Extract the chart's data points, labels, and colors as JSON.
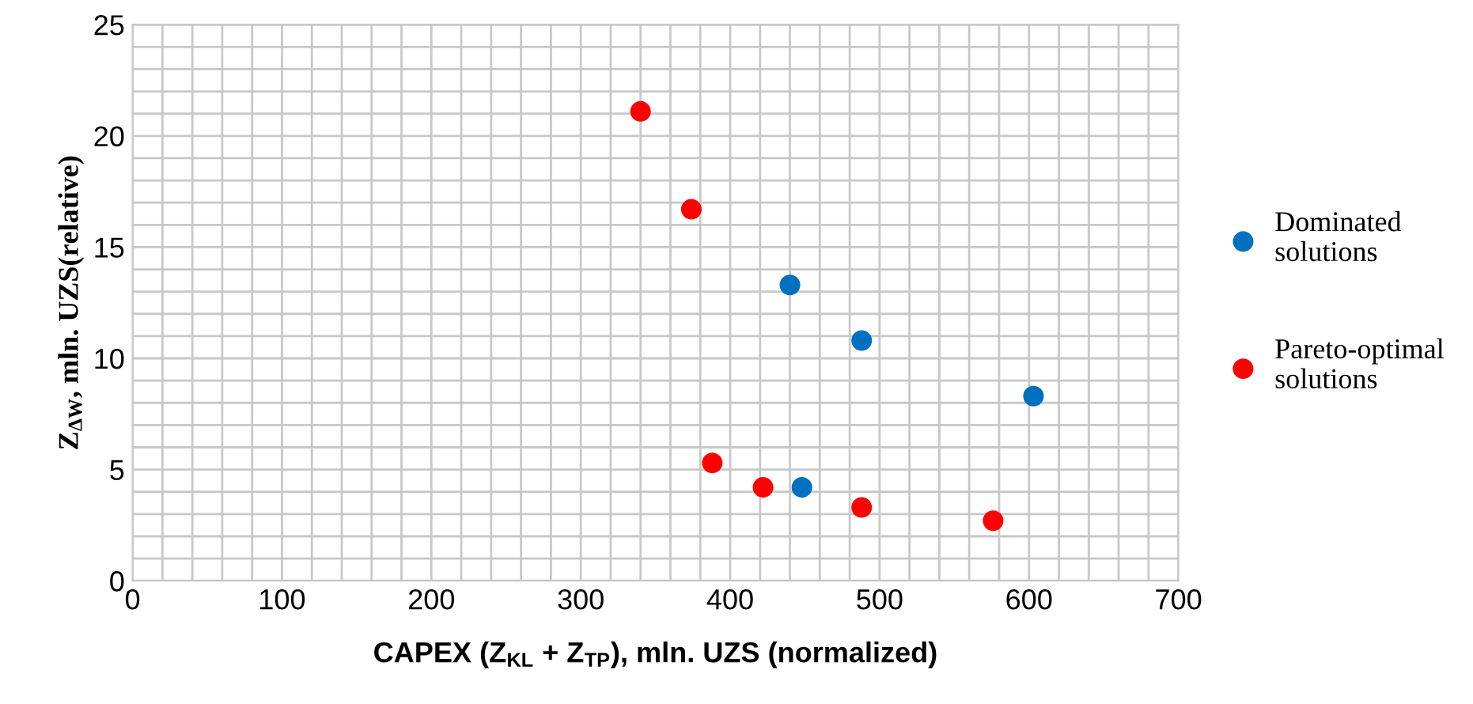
{
  "chart_data": {
    "type": "scatter",
    "xlabel": "CAPEX (Z$_{KL}$ + Z$_{TP}$), mln. UZS (normalized)",
    "ylabel": "Z$_{ΔW}$, mln. UZS(relative)",
    "series": [
      {
        "name": "Dominated solutions",
        "color": "#0070c0",
        "x": [
          440,
          488,
          603,
          448
        ],
        "values": [
          13.3,
          10.8,
          8.3,
          4.2
        ]
      },
      {
        "name": "Pareto-optimal solutions",
        "color": "#ff0000",
        "x": [
          340,
          374,
          388,
          422,
          488,
          576
        ],
        "values": [
          21.1,
          16.7,
          5.3,
          4.2,
          3.3,
          2.7
        ]
      }
    ],
    "xlim": [
      0,
      700
    ],
    "ylim": [
      0,
      25
    ],
    "xticks": [
      0,
      100,
      200,
      300,
      400,
      500,
      600,
      700
    ],
    "yticks": [
      0,
      5,
      10,
      15,
      20,
      25
    ],
    "grid": true,
    "legend": "right",
    "marker": "circle"
  }
}
